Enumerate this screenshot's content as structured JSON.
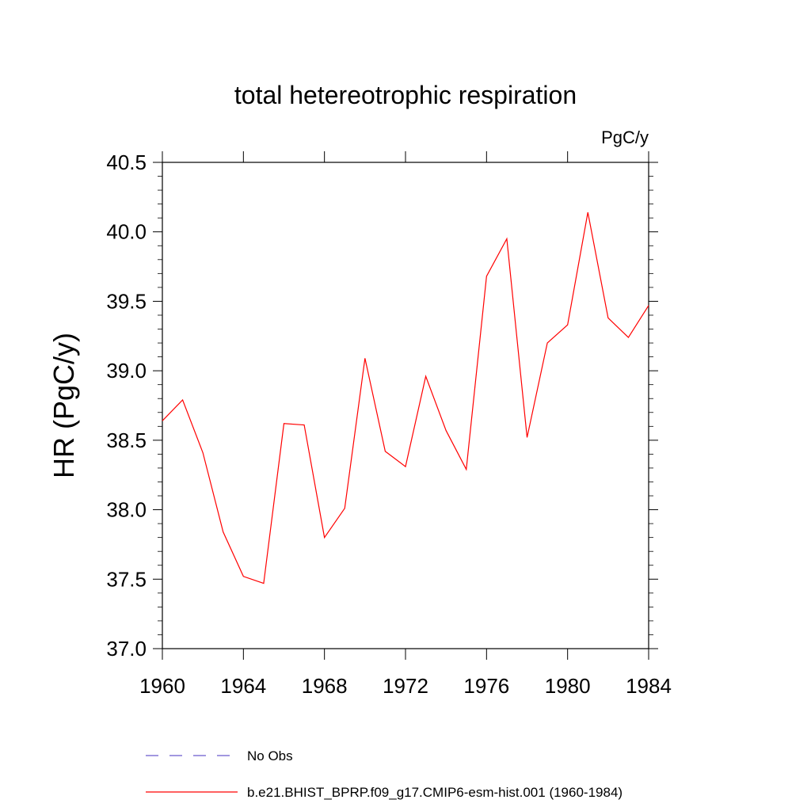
{
  "chart_data": {
    "type": "line",
    "title": "total hetereotrophic respiration",
    "units": "PgC/y",
    "ylabel": "HR  (PgC/y)",
    "xlabel": "",
    "xlim": [
      1960,
      1984
    ],
    "ylim": [
      37.0,
      40.5
    ],
    "x_ticks": [
      1960,
      1964,
      1968,
      1972,
      1976,
      1980,
      1984
    ],
    "y_ticks": [
      37.0,
      37.5,
      38.0,
      38.5,
      39.0,
      39.5,
      40.0,
      40.5
    ],
    "x_tick_labels": [
      "1960",
      "1964",
      "1968",
      "1972",
      "1976",
      "1980",
      "1984"
    ],
    "y_tick_labels": [
      "37.0",
      "37.5",
      "38.0",
      "38.5",
      "39.0",
      "39.5",
      "40.0",
      "40.5"
    ],
    "grid": false,
    "legend_position": "bottom",
    "series": [
      {
        "name": "b.e21.BHIST_BPRP.f09_g17.CMIP6-esm-hist.001 (1960-1984)",
        "color": "#ff0000",
        "style": "solid",
        "x": [
          1960,
          1961,
          1962,
          1963,
          1964,
          1965,
          1966,
          1967,
          1968,
          1969,
          1970,
          1971,
          1972,
          1973,
          1974,
          1975,
          1976,
          1977,
          1978,
          1979,
          1980,
          1981,
          1982,
          1983,
          1984
        ],
        "values": [
          38.64,
          38.79,
          38.41,
          37.84,
          37.52,
          37.47,
          38.62,
          38.61,
          37.8,
          38.01,
          39.09,
          38.42,
          38.31,
          38.96,
          38.57,
          38.29,
          39.68,
          39.95,
          38.52,
          39.2,
          39.33,
          40.14,
          39.38,
          39.24,
          39.47
        ]
      }
    ],
    "legend": [
      {
        "label": "No Obs",
        "color": "#6a5acd",
        "style": "dashed"
      },
      {
        "label": "b.e21.BHIST_BPRP.f09_g17.CMIP6-esm-hist.001 (1960-1984)",
        "color": "#ff0000",
        "style": "solid"
      }
    ]
  }
}
